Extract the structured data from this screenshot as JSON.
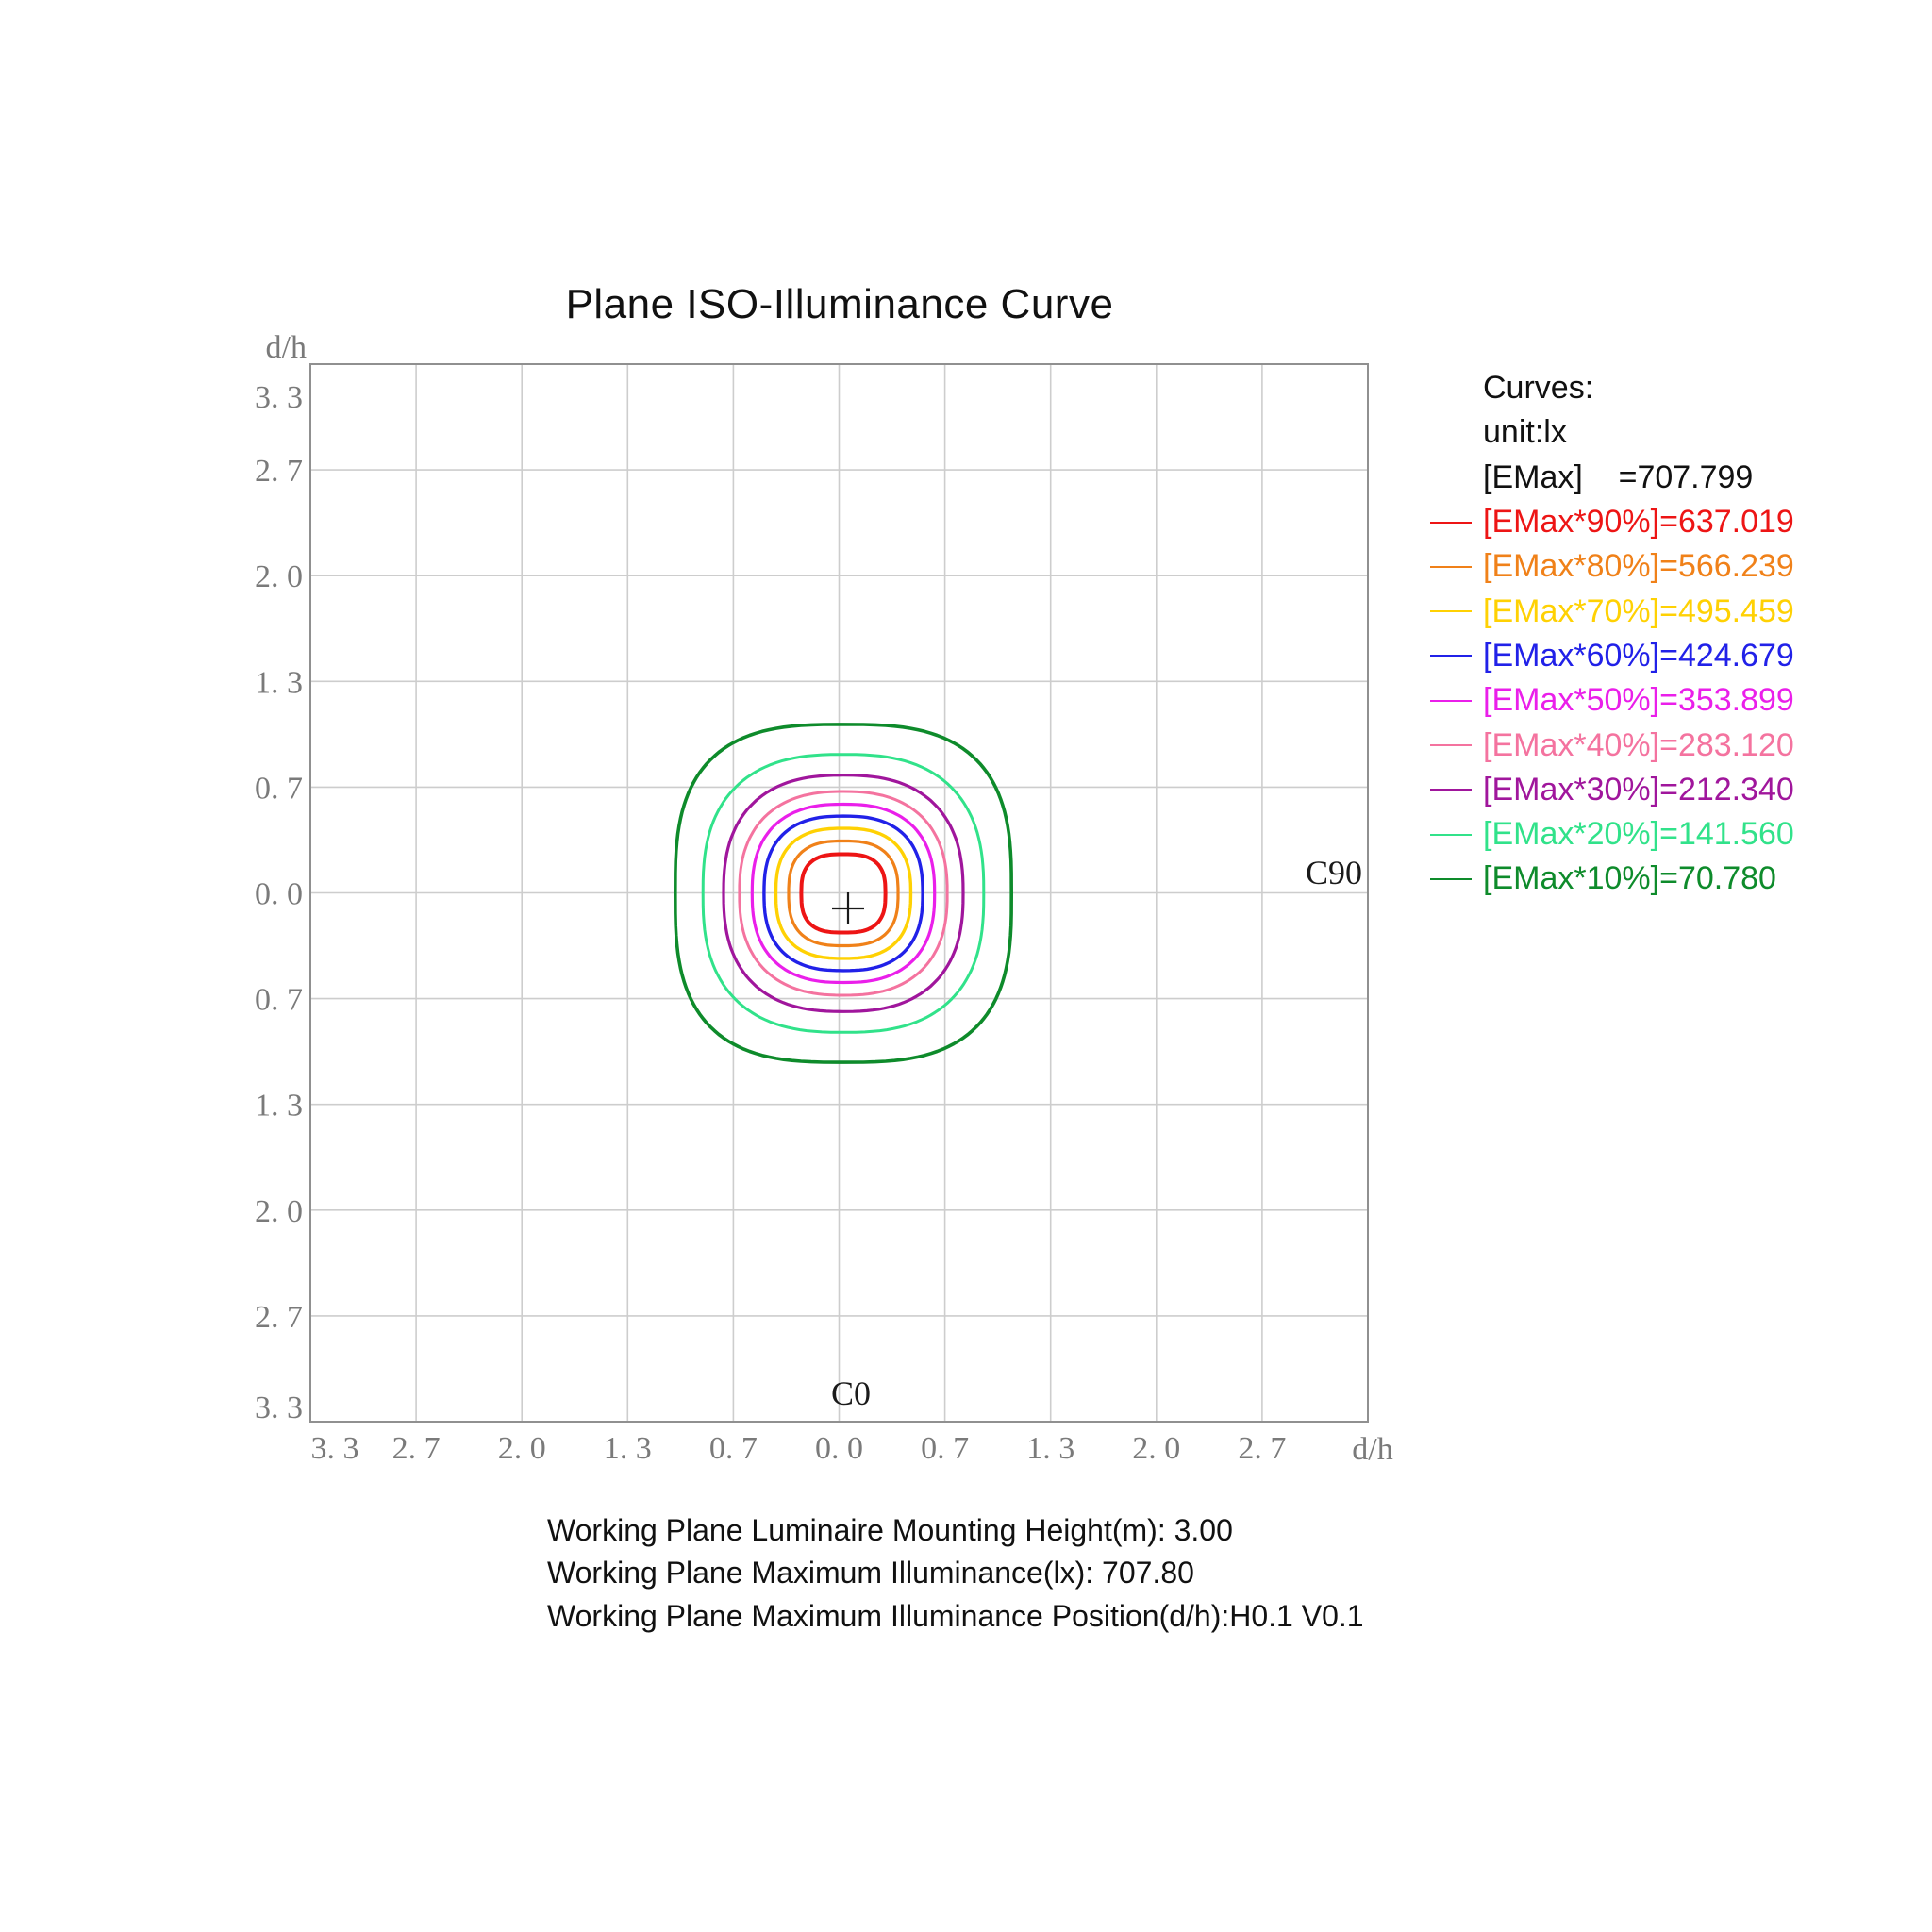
{
  "title": "Plane ISO-Illuminance Curve",
  "legend": {
    "header": "Curves:",
    "unit_line": "unit:lx",
    "emax_line": "[EMax]    =707.799"
  },
  "plot": {
    "axis_label": "d/h",
    "c0_label": "C0",
    "c90_label": "C90",
    "y_ticks": [
      "3. 3",
      "2. 7",
      "2. 0",
      "1. 3",
      "0. 7",
      "0. 0",
      "0. 7",
      "1. 3",
      "2. 0",
      "2. 7",
      "3. 3"
    ],
    "x_ticks": [
      "3. 3",
      "2. 7",
      "2. 0",
      "1. 3",
      "0. 7",
      "0. 0",
      "0. 7",
      "1. 3",
      "2. 0",
      "2. 7"
    ]
  },
  "footer": {
    "lines": [
      "Working Plane Luminaire Mounting Height(m): 3.00",
      "Working Plane Maximum Illuminance(lx): 707.80",
      "Working Plane Maximum Illuminance Position(d/h):H0.1 V0.1"
    ]
  },
  "chart_data": {
    "type": "contour",
    "title": "Plane ISO-Illuminance Curve",
    "unit": "lx",
    "emax_lx": 707.799,
    "mounting_height_m": 3.0,
    "max_position_dh": "H0.1 V0.1",
    "axis_label": "d/h",
    "axis_range": [
      -3.33,
      3.33
    ],
    "tick_values": [
      3.33,
      2.67,
      2.0,
      1.33,
      0.67,
      0.0,
      0.67,
      1.33,
      2.0,
      2.67,
      3.33
    ],
    "grid": true,
    "legend_position": "right",
    "grid_color": "#cdcdcd",
    "border_color": "#909090",
    "tick_color": "#7a7a7a",
    "cross_color": "#1a1a1a",
    "contours": [
      {
        "label": "[EMax*90%]=637.019",
        "percent": 90,
        "value_lx": 637.019,
        "color": "#ed1515",
        "rx_dh": 0.265,
        "ry_dh": 0.247,
        "squareness": 2.85,
        "stroke": 4.0
      },
      {
        "label": "[EMax*80%]=566.239",
        "percent": 80,
        "value_lx": 566.239,
        "color": "#f08119",
        "rx_dh": 0.345,
        "ry_dh": 0.33,
        "squareness": 2.7,
        "stroke": 3.2
      },
      {
        "label": "[EMax*70%]=495.459",
        "percent": 70,
        "value_lx": 495.459,
        "color": "#ffd103",
        "rx_dh": 0.425,
        "ry_dh": 0.41,
        "squareness": 2.6,
        "stroke": 3.4
      },
      {
        "label": "[EMax*60%]=424.679",
        "percent": 60,
        "value_lx": 424.679,
        "color": "#2121e8",
        "rx_dh": 0.5,
        "ry_dh": 0.487,
        "squareness": 2.55,
        "stroke": 3.4
      },
      {
        "label": "[EMax*50%]=353.899",
        "percent": 50,
        "value_lx": 353.899,
        "color": "#ea1fea",
        "rx_dh": 0.575,
        "ry_dh": 0.562,
        "squareness": 2.5,
        "stroke": 3.2
      },
      {
        "label": "[EMax*40%]=283.120",
        "percent": 40,
        "value_lx": 283.12,
        "color": "#f4739f",
        "rx_dh": 0.655,
        "ry_dh": 0.642,
        "squareness": 2.45,
        "stroke": 3.0
      },
      {
        "label": "[EMax*30%]=212.340",
        "percent": 30,
        "value_lx": 212.34,
        "color": "#a0169c",
        "rx_dh": 0.755,
        "ry_dh": 0.745,
        "squareness": 2.5,
        "stroke": 3.2
      },
      {
        "label": "[EMax*20%]=141.560",
        "percent": 20,
        "value_lx": 141.56,
        "color": "#31e28a",
        "rx_dh": 0.885,
        "ry_dh": 0.876,
        "squareness": 2.6,
        "stroke": 3.0
      },
      {
        "label": "[EMax*10%]=70.780",
        "percent": 10,
        "value_lx": 70.78,
        "color": "#0e8b2b",
        "rx_dh": 1.06,
        "ry_dh": 1.065,
        "squareness": 2.95,
        "stroke": 3.6
      }
    ]
  }
}
